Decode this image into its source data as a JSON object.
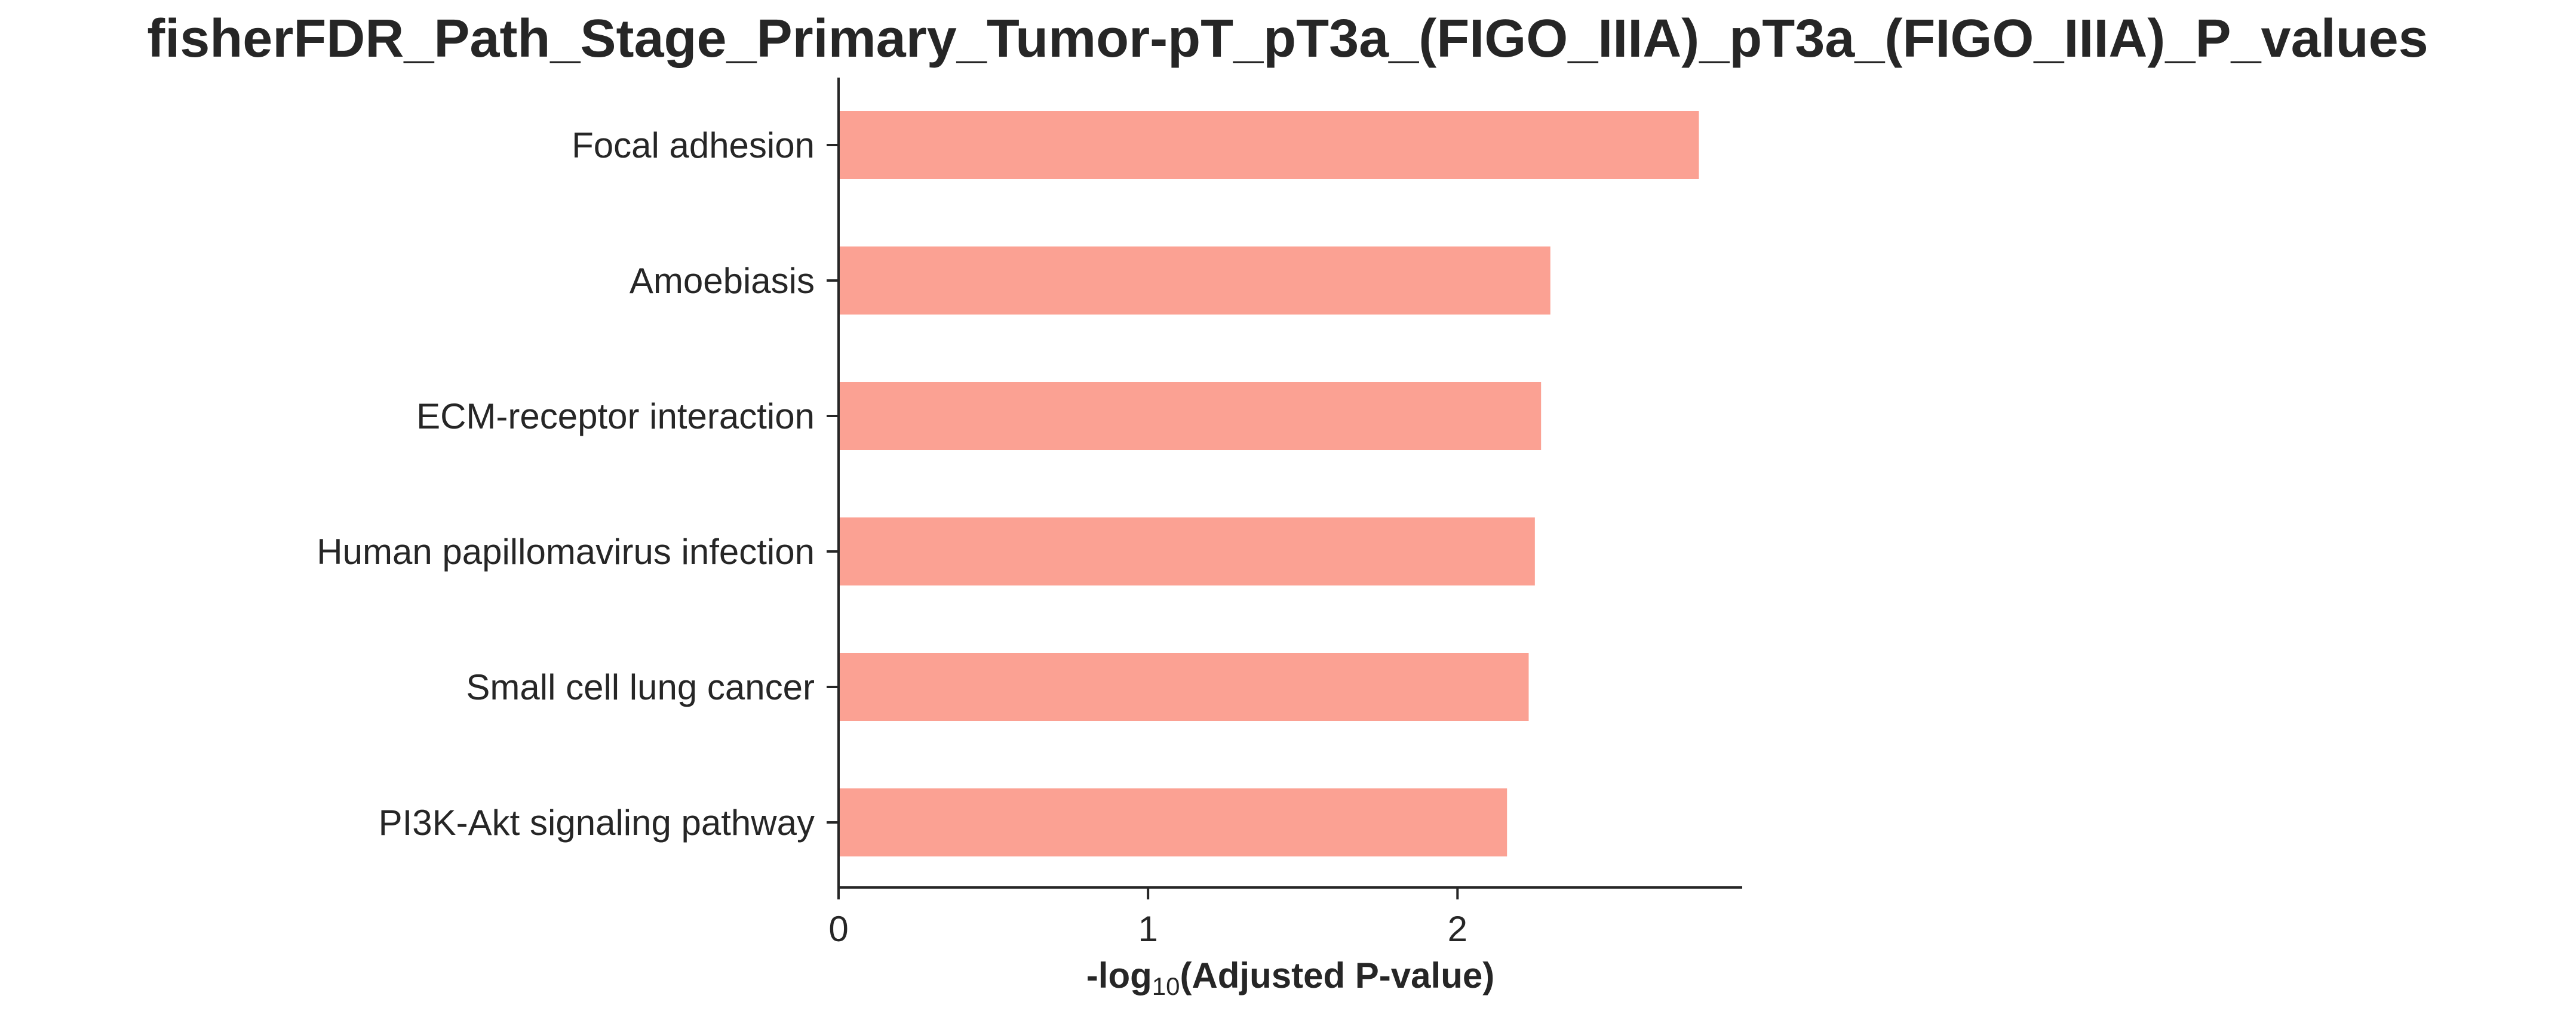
{
  "chart_data": {
    "type": "bar",
    "orientation": "horizontal",
    "title": "fisherFDR_Path_Stage_Primary_Tumor-pT_pT3a_(FIGO_IIIA)_pT3a_(FIGO_IIIA)_P_values",
    "xlabel_prefix": "-log",
    "xlabel_subscript": "10",
    "xlabel_suffix": "(Adjusted P-value)",
    "ylabel": "",
    "categories": [
      "Focal adhesion",
      "Amoebiasis",
      "ECM-receptor interaction",
      "Human papillomavirus infection",
      "Small cell lung cancer",
      "PI3K-Akt signaling pathway"
    ],
    "values": [
      2.78,
      2.3,
      2.27,
      2.25,
      2.23,
      2.16
    ],
    "xlim": [
      0,
      2.92
    ],
    "xticks": [
      0,
      1,
      2
    ],
    "xtick_labels": [
      "0",
      "1",
      "2"
    ],
    "bar_color": "#fba193",
    "axis_color": "#262626",
    "grid": false,
    "legend": "none"
  }
}
